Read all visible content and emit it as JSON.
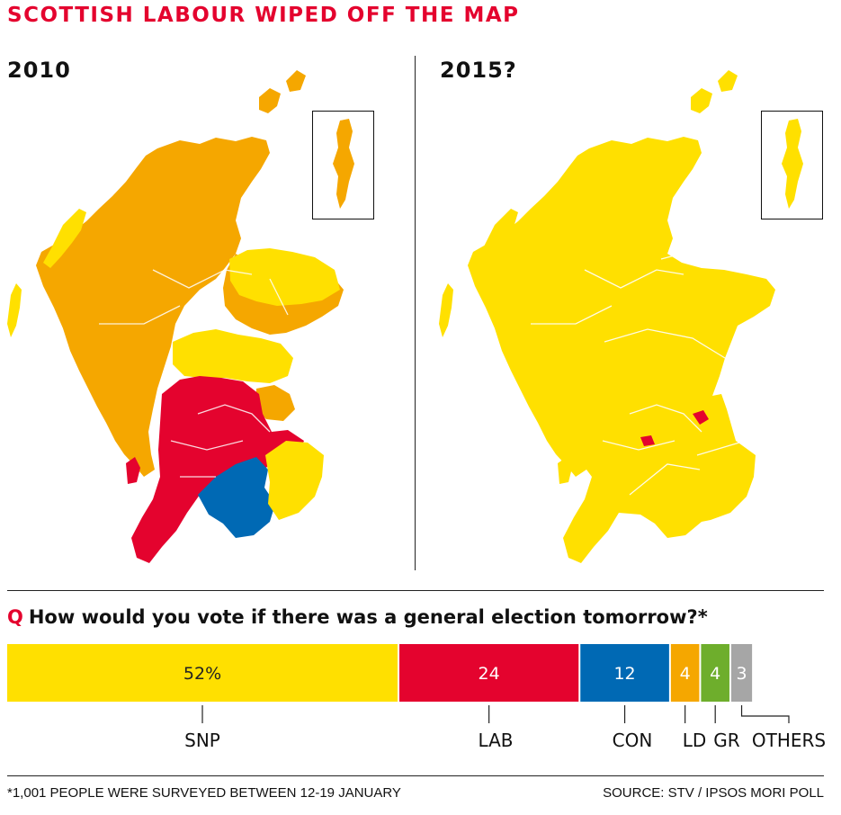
{
  "headline": "SCOTTISH LABOUR WIPED OFF THE MAP",
  "maps": {
    "left_title": "2010",
    "right_title": "2015?"
  },
  "question": {
    "marker": "Q",
    "text": "How would you vote if there was a general election tomorrow?*"
  },
  "footnote": "*1,001 PEOPLE WERE SURVEYED BETWEEN 12-19 JANUARY",
  "source": "SOURCE: STV / IPSOS MORI POLL",
  "colors": {
    "SNP": "#ffe000",
    "LAB": "#e4032e",
    "CON": "#0069b4",
    "LD": "#f5a700",
    "GR": "#6eae2c",
    "OTHERS": "#a6a6a6"
  },
  "chart_data": {
    "type": "bar",
    "orientation": "stacked-horizontal",
    "unit": "%",
    "categories": [
      "SNP",
      "LAB",
      "CON",
      "LD",
      "GR",
      "OTHERS"
    ],
    "values": [
      52,
      24,
      12,
      4,
      4,
      3
    ],
    "value_labels": [
      "52%",
      "24",
      "12",
      "4",
      "4",
      "3"
    ]
  }
}
